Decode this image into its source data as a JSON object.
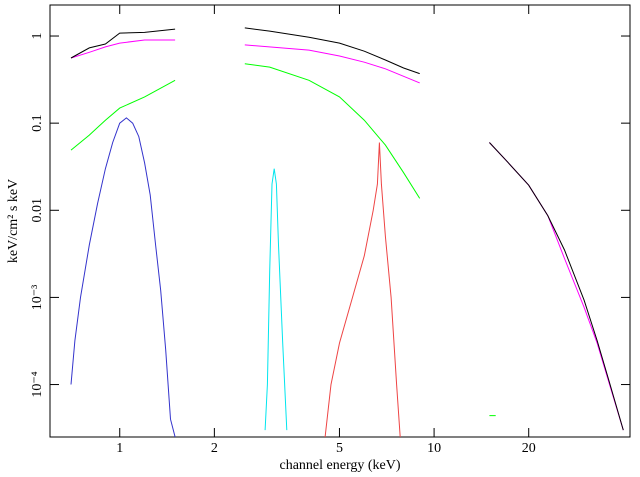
{
  "chart_data": {
    "type": "line",
    "xlabel": "channel energy (keV)",
    "ylabel": "keV/cm² s keV",
    "xscale": "log",
    "yscale": "log",
    "xlim": [
      0.6,
      42
    ],
    "ylim": [
      2.5e-05,
      2.27
    ],
    "xticks": [
      1,
      2,
      5,
      10,
      20
    ],
    "yticks": [
      1,
      0.1,
      0.01,
      {
        "value": 0.001,
        "label": "10⁻³"
      },
      {
        "value": 0.0001,
        "label": "10⁻⁴"
      }
    ],
    "series": [
      {
        "color": "#00ff00",
        "x": [
          0.7,
          0.8,
          0.9,
          1.0,
          1.2,
          1.5,
          null,
          2.5,
          3,
          4,
          5,
          6,
          7,
          8,
          9,
          null,
          15,
          15.7
        ],
        "values": [
          0.049,
          0.073,
          0.108,
          0.149,
          0.2,
          0.31,
          null,
          0.48,
          0.44,
          0.31,
          0.2,
          0.108,
          0.056,
          0.027,
          0.0137,
          null,
          4.4e-05,
          4.4e-05
        ]
      },
      {
        "color": "#3333cc",
        "x": [
          0.7,
          0.72,
          0.75,
          0.8,
          0.85,
          0.9,
          0.95,
          1.0,
          1.05,
          1.1,
          1.15,
          1.2,
          1.25,
          1.3,
          1.35,
          1.4,
          1.45,
          1.5
        ],
        "values": [
          0.0001,
          0.00032,
          0.001,
          0.004,
          0.012,
          0.03,
          0.06,
          0.1,
          0.115,
          0.1,
          0.07,
          0.035,
          0.015,
          0.004,
          0.0012,
          0.00025,
          4e-05,
          2.5e-05
        ]
      },
      {
        "color": "#00e5ee",
        "x": [
          2.9,
          2.95,
          3.0,
          3.05,
          3.1,
          3.15,
          3.2,
          3.3,
          3.4
        ],
        "values": [
          3e-05,
          0.0001,
          0.002,
          0.02,
          0.03,
          0.02,
          0.004,
          0.0003,
          3e-05
        ]
      },
      {
        "color": "#ee4444",
        "x": [
          4.5,
          4.7,
          5,
          5.5,
          6,
          6.4,
          6.6,
          6.7,
          6.8,
          7.0,
          7.3,
          7.6,
          7.8
        ],
        "values": [
          2.5e-05,
          0.0001,
          0.0003,
          0.001,
          0.003,
          0.01,
          0.02,
          0.06,
          0.02,
          0.005,
          0.001,
          0.0001,
          2.5e-05
        ]
      },
      {
        "color": "#ff00ff",
        "x": [
          0.7,
          0.8,
          0.9,
          1.0,
          1.2,
          1.5,
          null,
          2.5,
          4,
          5,
          6,
          7,
          9,
          null,
          15,
          17,
          20,
          23,
          26,
          30,
          33,
          36,
          40
        ],
        "values": [
          0.56,
          0.65,
          0.75,
          0.83,
          0.9,
          0.9,
          null,
          0.79,
          0.69,
          0.59,
          0.5,
          0.42,
          0.29,
          null,
          0.06,
          0.037,
          0.0194,
          0.0087,
          0.0028,
          0.00077,
          0.0003,
          0.000105,
          3e-05
        ]
      },
      {
        "color": "#000000",
        "x": [
          0.7,
          0.8,
          0.9,
          1.0,
          1.2,
          1.5,
          null,
          2.5,
          3,
          4,
          5,
          6,
          7,
          8,
          9,
          null,
          15,
          17,
          20,
          23,
          26,
          30,
          33,
          36,
          40
        ],
        "values": [
          0.56,
          0.73,
          0.81,
          1.08,
          1.1,
          1.2,
          null,
          1.24,
          1.14,
          0.97,
          0.83,
          0.67,
          0.53,
          0.43,
          0.37,
          null,
          0.06,
          0.037,
          0.0194,
          0.0087,
          0.0035,
          0.00093,
          0.00032,
          0.00011,
          3e-05
        ]
      }
    ]
  }
}
